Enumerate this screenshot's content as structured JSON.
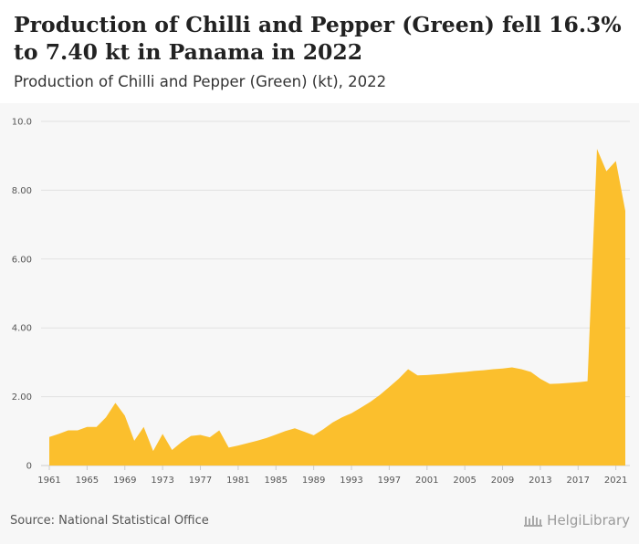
{
  "header": {
    "title": "Production of Chilli and Pepper (Green) fell 16.3% to 7.40 kt in Panama in 2022",
    "subtitle": "Production of Chilli and Pepper (Green) (kt), 2022"
  },
  "footer": {
    "source": "Source: National Statistical Office",
    "brand": "HelgiLibrary",
    "brand_icon": "library-columns-icon"
  },
  "colors": {
    "area_fill": "#fbbf2d",
    "grid": "#e2e2e2",
    "background": "#f7f7f7"
  },
  "chart_data": {
    "type": "area",
    "title": "Production of Chilli and Pepper (Green) (kt), 2022",
    "xlabel": "",
    "ylabel": "",
    "ylim": [
      0,
      10
    ],
    "grid": true,
    "y_ticks": [
      "0",
      "2.00",
      "4.00",
      "6.00",
      "8.00",
      "10.0"
    ],
    "x_ticks": [
      "1961",
      "1965",
      "1969",
      "1973",
      "1977",
      "1981",
      "1985",
      "1989",
      "1993",
      "1997",
      "2001",
      "2005",
      "2009",
      "2013",
      "2017",
      "2021"
    ],
    "x": [
      1961,
      1962,
      1963,
      1964,
      1965,
      1966,
      1967,
      1968,
      1969,
      1970,
      1971,
      1972,
      1973,
      1974,
      1975,
      1976,
      1977,
      1978,
      1979,
      1980,
      1981,
      1982,
      1983,
      1984,
      1985,
      1986,
      1987,
      1988,
      1989,
      1990,
      1991,
      1992,
      1993,
      1994,
      1995,
      1996,
      1997,
      1998,
      1999,
      2000,
      2001,
      2002,
      2003,
      2004,
      2005,
      2006,
      2007,
      2008,
      2009,
      2010,
      2011,
      2012,
      2013,
      2014,
      2015,
      2016,
      2017,
      2018,
      2019,
      2020,
      2021,
      2022
    ],
    "values": [
      0.83,
      0.92,
      1.02,
      1.02,
      1.12,
      1.12,
      1.4,
      1.82,
      1.45,
      0.72,
      1.12,
      0.42,
      0.92,
      0.45,
      0.68,
      0.86,
      0.89,
      0.82,
      1.02,
      0.52,
      0.58,
      0.65,
      0.72,
      0.8,
      0.9,
      1.0,
      1.08,
      0.98,
      0.88,
      1.05,
      1.25,
      1.4,
      1.52,
      1.68,
      1.85,
      2.05,
      2.28,
      2.52,
      2.8,
      2.62,
      2.63,
      2.65,
      2.67,
      2.7,
      2.72,
      2.75,
      2.77,
      2.8,
      2.82,
      2.85,
      2.8,
      2.72,
      2.52,
      2.37,
      2.38,
      2.4,
      2.42,
      2.45,
      9.2,
      8.55,
      8.85,
      7.4
    ]
  }
}
